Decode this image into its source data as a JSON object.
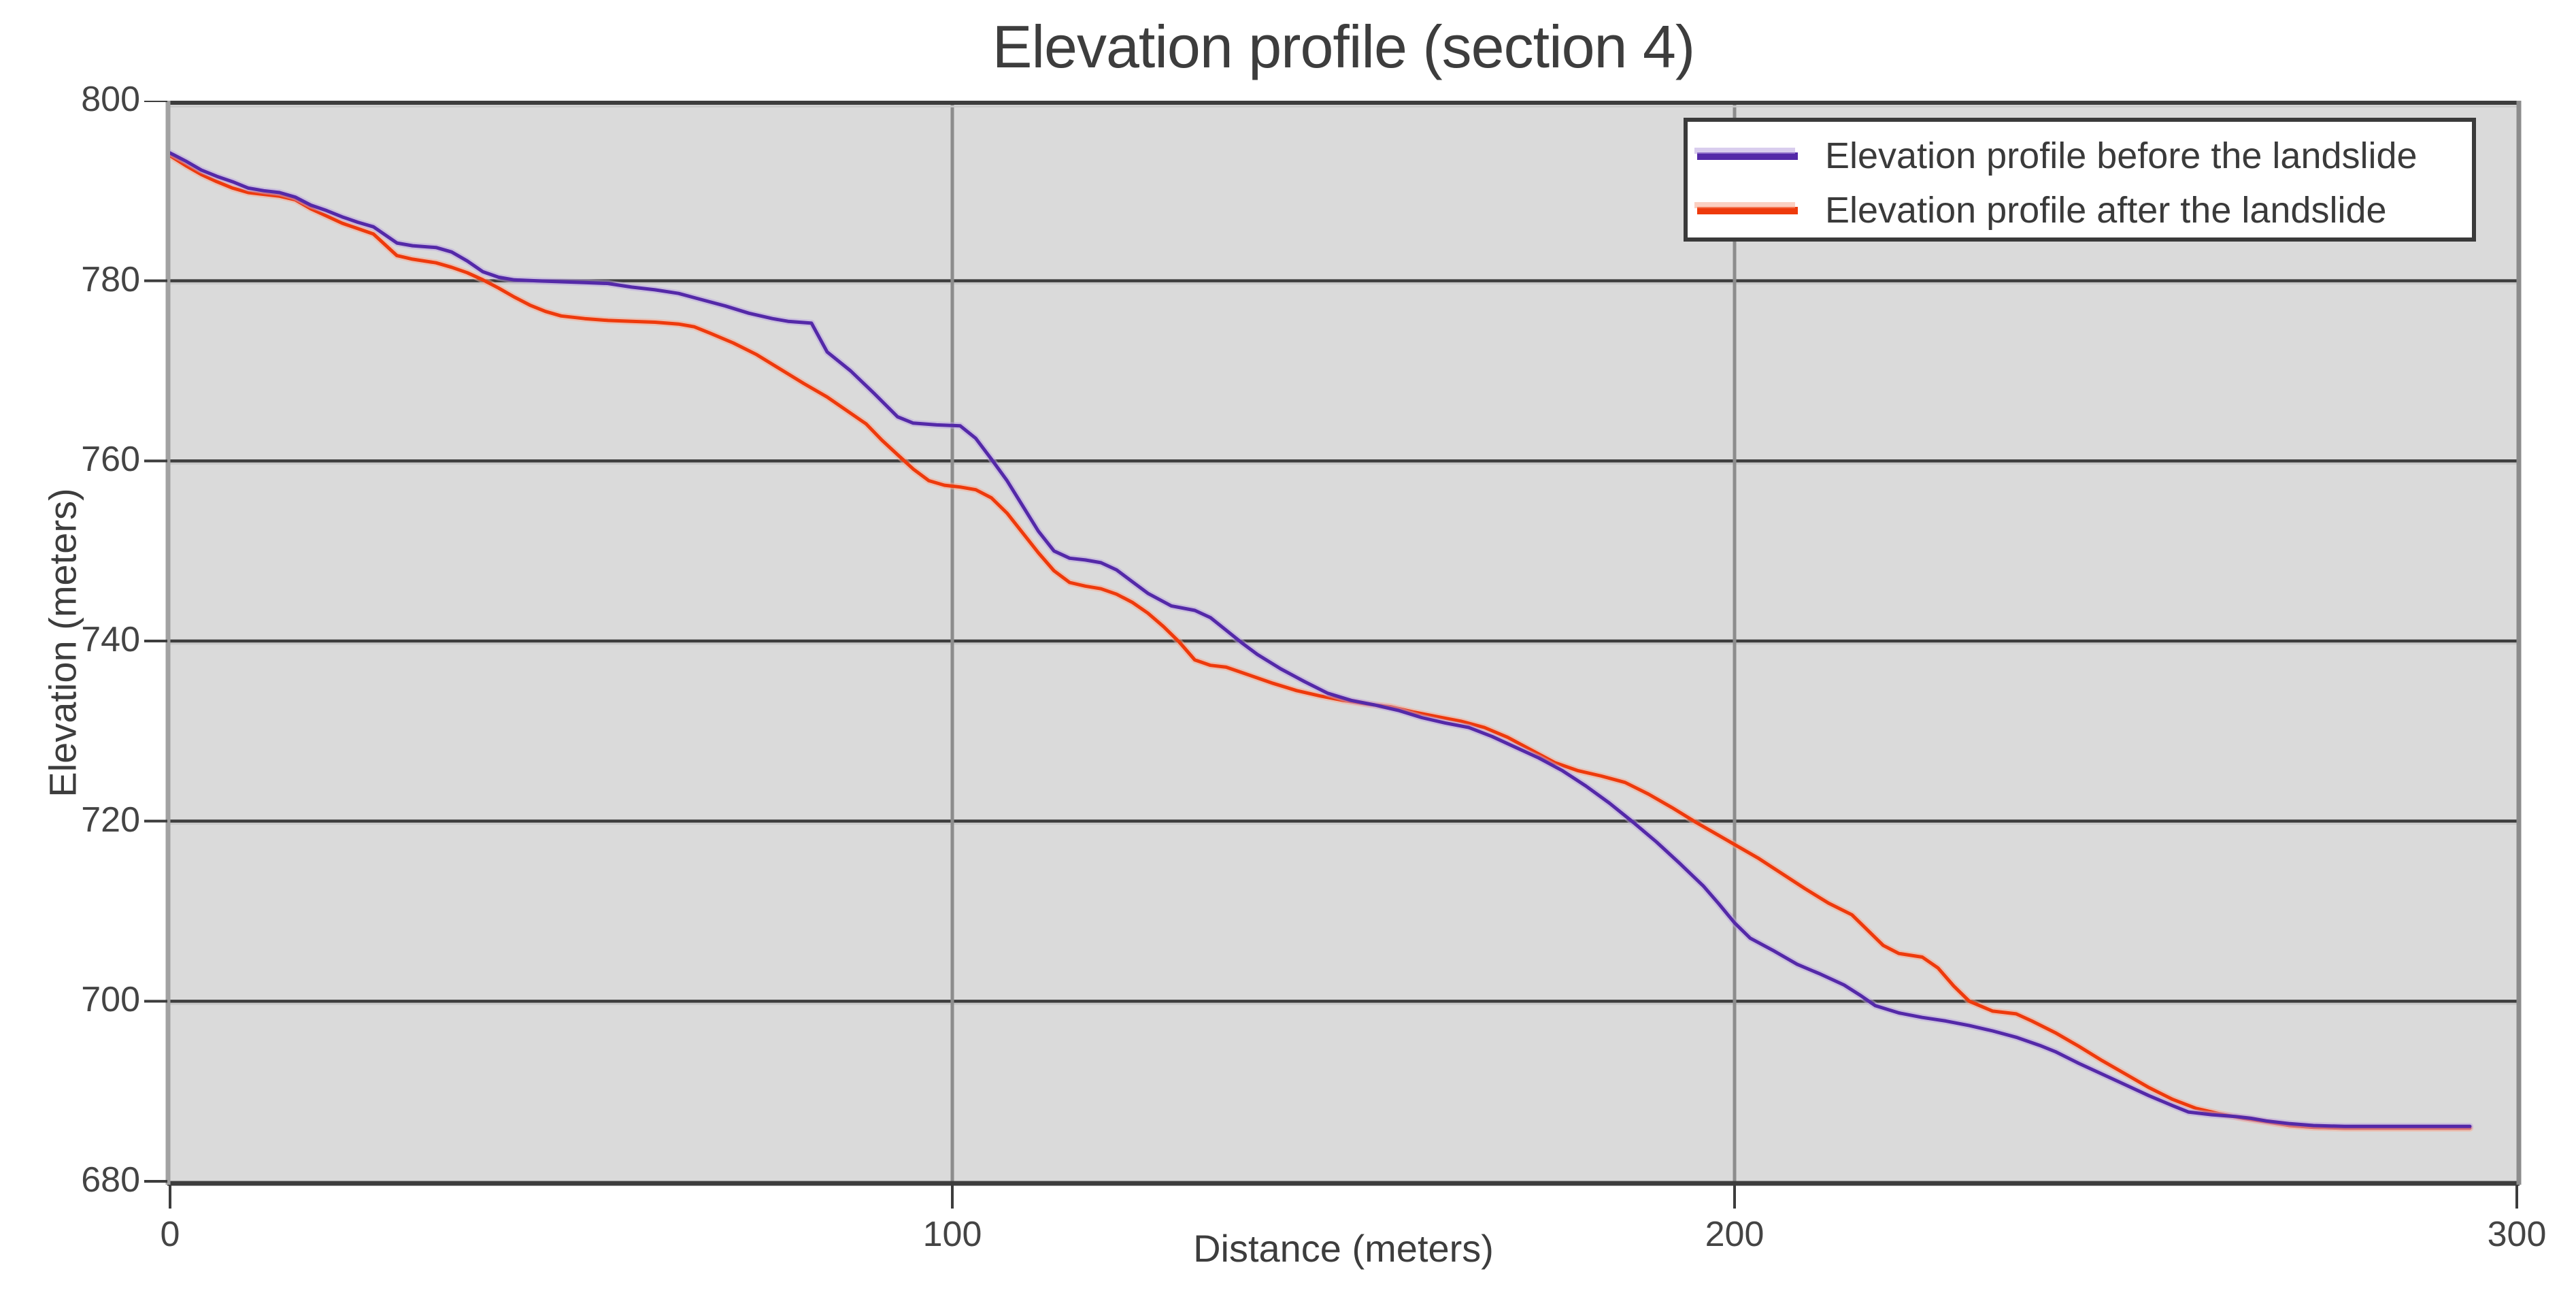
{
  "title": "Elevation profile (section 4)",
  "axes": {
    "x": {
      "label": "Distance (meters)",
      "ticks": [
        0,
        100,
        200,
        300
      ],
      "range": [
        0,
        300
      ]
    },
    "y": {
      "label": "Elevation (meters)",
      "ticks": [
        800,
        780,
        760,
        740,
        720,
        700,
        680
      ],
      "range": [
        680,
        800
      ]
    }
  },
  "legend": {
    "position": "top-right",
    "entries": [
      {
        "label": "Elevation profile before the landslide",
        "color": "#5429a8",
        "halo": "#b9a4e0"
      },
      {
        "label": "Elevation profile after the landslide",
        "color": "#ee3a0c",
        "halo": "#f8a88e"
      }
    ]
  },
  "colors": {
    "plot_background": "#dadada",
    "page_background": "#ffffff",
    "grid_major_horizontal": "#3d3d3d",
    "grid_shadow": "#c8c8c8",
    "grid_vertical": "#8c8c8c",
    "axis_left_band": "#a2a2a2",
    "axis_right_band": "#8c8c8c",
    "axis_dark": "#3d3d3d",
    "text": "#3d3d3d"
  },
  "chart_data": {
    "type": "line",
    "title": "Elevation profile (section 4)",
    "xlabel": "Distance (meters)",
    "ylabel": "Elevation (meters)",
    "xlim": [
      0,
      300
    ],
    "ylim": [
      680,
      800
    ],
    "grid": true,
    "legend_position": "top-right",
    "series": [
      {
        "name": "Elevation profile before the landslide",
        "color": "#5429a8",
        "points": [
          [
            0,
            794.2
          ],
          [
            2,
            793.3
          ],
          [
            4,
            792.3
          ],
          [
            6,
            791.6
          ],
          [
            8,
            791.0
          ],
          [
            10,
            790.3
          ],
          [
            12,
            790.0
          ],
          [
            14,
            789.8
          ],
          [
            16,
            789.3
          ],
          [
            18,
            788.4
          ],
          [
            20,
            787.8
          ],
          [
            22,
            787.1
          ],
          [
            24,
            786.5
          ],
          [
            26,
            786.0
          ],
          [
            29,
            784.2
          ],
          [
            31,
            783.9
          ],
          [
            34,
            783.7
          ],
          [
            36,
            783.2
          ],
          [
            38,
            782.2
          ],
          [
            40,
            781.0
          ],
          [
            42,
            780.4
          ],
          [
            44,
            780.1
          ],
          [
            47,
            780.0
          ],
          [
            50,
            779.9
          ],
          [
            53,
            779.8
          ],
          [
            56,
            779.7
          ],
          [
            59,
            779.3
          ],
          [
            62,
            779.0
          ],
          [
            65,
            778.6
          ],
          [
            68,
            777.9
          ],
          [
            71,
            777.2
          ],
          [
            74,
            776.4
          ],
          [
            77,
            775.8
          ],
          [
            79,
            775.5
          ],
          [
            82,
            775.3
          ],
          [
            84,
            772.1
          ],
          [
            87,
            770.0
          ],
          [
            90,
            767.5
          ],
          [
            93,
            764.9
          ],
          [
            95,
            764.2
          ],
          [
            98,
            764.0
          ],
          [
            101,
            763.9
          ],
          [
            103,
            762.5
          ],
          [
            105,
            760.2
          ],
          [
            107,
            757.8
          ],
          [
            109,
            755.0
          ],
          [
            111,
            752.2
          ],
          [
            113,
            750.0
          ],
          [
            115,
            749.2
          ],
          [
            117,
            749.0
          ],
          [
            119,
            748.7
          ],
          [
            121,
            747.9
          ],
          [
            123,
            746.6
          ],
          [
            125,
            745.3
          ],
          [
            128,
            743.9
          ],
          [
            131,
            743.4
          ],
          [
            133,
            742.6
          ],
          [
            135,
            741.2
          ],
          [
            137,
            739.8
          ],
          [
            139,
            738.5
          ],
          [
            142,
            736.9
          ],
          [
            145,
            735.5
          ],
          [
            148,
            734.2
          ],
          [
            151,
            733.4
          ],
          [
            154,
            732.9
          ],
          [
            157,
            732.3
          ],
          [
            160,
            731.5
          ],
          [
            163,
            730.9
          ],
          [
            166,
            730.4
          ],
          [
            169,
            729.4
          ],
          [
            172,
            728.2
          ],
          [
            175,
            727.0
          ],
          [
            178,
            725.6
          ],
          [
            181,
            723.9
          ],
          [
            184,
            722.0
          ],
          [
            187,
            719.9
          ],
          [
            190,
            717.7
          ],
          [
            193,
            715.3
          ],
          [
            196,
            712.8
          ],
          [
            198,
            710.8
          ],
          [
            200,
            708.7
          ],
          [
            202,
            707.0
          ],
          [
            205,
            705.6
          ],
          [
            208,
            704.1
          ],
          [
            211,
            703.0
          ],
          [
            214,
            701.8
          ],
          [
            216,
            700.7
          ],
          [
            218,
            699.5
          ],
          [
            221,
            698.7
          ],
          [
            224,
            698.2
          ],
          [
            227,
            697.8
          ],
          [
            230,
            697.3
          ],
          [
            233,
            696.7
          ],
          [
            236,
            696.0
          ],
          [
            239,
            695.1
          ],
          [
            241,
            694.4
          ],
          [
            244,
            693.1
          ],
          [
            247,
            691.9
          ],
          [
            250,
            690.7
          ],
          [
            253,
            689.5
          ],
          [
            256,
            688.4
          ],
          [
            258,
            687.7
          ],
          [
            261,
            687.4
          ],
          [
            264,
            687.2
          ],
          [
            266,
            687.0
          ],
          [
            268,
            686.7
          ],
          [
            271,
            686.4
          ],
          [
            274,
            686.2
          ],
          [
            278,
            686.1
          ],
          [
            283,
            686.1
          ],
          [
            288,
            686.1
          ],
          [
            294,
            686.1
          ]
        ]
      },
      {
        "name": "Elevation profile after the landslide",
        "color": "#ee3a0c",
        "points": [
          [
            0,
            793.9
          ],
          [
            2,
            792.8
          ],
          [
            4,
            791.8
          ],
          [
            6,
            791.0
          ],
          [
            8,
            790.3
          ],
          [
            10,
            789.8
          ],
          [
            12,
            789.6
          ],
          [
            14,
            789.4
          ],
          [
            16,
            789.0
          ],
          [
            18,
            788.0
          ],
          [
            20,
            787.2
          ],
          [
            22,
            786.4
          ],
          [
            24,
            785.8
          ],
          [
            26,
            785.2
          ],
          [
            29,
            782.8
          ],
          [
            31,
            782.4
          ],
          [
            34,
            782.0
          ],
          [
            36,
            781.5
          ],
          [
            38,
            780.9
          ],
          [
            40,
            780.1
          ],
          [
            42,
            779.2
          ],
          [
            44,
            778.2
          ],
          [
            46,
            777.3
          ],
          [
            48,
            776.6
          ],
          [
            50,
            776.1
          ],
          [
            53,
            775.8
          ],
          [
            56,
            775.6
          ],
          [
            59,
            775.5
          ],
          [
            62,
            775.4
          ],
          [
            65,
            775.2
          ],
          [
            67,
            774.9
          ],
          [
            69,
            774.2
          ],
          [
            72,
            773.1
          ],
          [
            75,
            771.8
          ],
          [
            78,
            770.2
          ],
          [
            81,
            768.6
          ],
          [
            84,
            767.1
          ],
          [
            86,
            765.9
          ],
          [
            89,
            764.1
          ],
          [
            91,
            762.3
          ],
          [
            93,
            760.7
          ],
          [
            95,
            759.1
          ],
          [
            97,
            757.8
          ],
          [
            99,
            757.3
          ],
          [
            101,
            757.1
          ],
          [
            103,
            756.8
          ],
          [
            105,
            755.9
          ],
          [
            107,
            754.2
          ],
          [
            109,
            752.0
          ],
          [
            111,
            749.8
          ],
          [
            113,
            747.8
          ],
          [
            115,
            746.5
          ],
          [
            117,
            746.1
          ],
          [
            119,
            745.8
          ],
          [
            121,
            745.2
          ],
          [
            123,
            744.3
          ],
          [
            125,
            743.1
          ],
          [
            127,
            741.6
          ],
          [
            129,
            739.9
          ],
          [
            131,
            737.9
          ],
          [
            133,
            737.3
          ],
          [
            135,
            737.1
          ],
          [
            138,
            736.2
          ],
          [
            141,
            735.3
          ],
          [
            144,
            734.5
          ],
          [
            147,
            733.9
          ],
          [
            150,
            733.4
          ],
          [
            153,
            733.0
          ],
          [
            156,
            732.7
          ],
          [
            159,
            732.1
          ],
          [
            162,
            731.6
          ],
          [
            165,
            731.1
          ],
          [
            168,
            730.4
          ],
          [
            171,
            729.3
          ],
          [
            174,
            727.9
          ],
          [
            177,
            726.5
          ],
          [
            180,
            725.6
          ],
          [
            183,
            725.0
          ],
          [
            186,
            724.3
          ],
          [
            189,
            723.0
          ],
          [
            192,
            721.5
          ],
          [
            195,
            719.9
          ],
          [
            198,
            718.4
          ],
          [
            200,
            717.4
          ],
          [
            203,
            715.9
          ],
          [
            206,
            714.2
          ],
          [
            209,
            712.5
          ],
          [
            212,
            710.9
          ],
          [
            215,
            709.6
          ],
          [
            217,
            707.9
          ],
          [
            219,
            706.2
          ],
          [
            221,
            705.3
          ],
          [
            224,
            704.9
          ],
          [
            226,
            703.7
          ],
          [
            228,
            701.7
          ],
          [
            230,
            700.0
          ],
          [
            233,
            698.9
          ],
          [
            236,
            698.6
          ],
          [
            238,
            697.8
          ],
          [
            241,
            696.5
          ],
          [
            244,
            695.0
          ],
          [
            247,
            693.4
          ],
          [
            250,
            691.9
          ],
          [
            253,
            690.4
          ],
          [
            256,
            689.1
          ],
          [
            259,
            688.1
          ],
          [
            262,
            687.5
          ],
          [
            265,
            687.0
          ],
          [
            268,
            686.6
          ],
          [
            271,
            686.2
          ],
          [
            274,
            686.0
          ],
          [
            278,
            685.9
          ],
          [
            283,
            685.9
          ],
          [
            288,
            685.9
          ],
          [
            294,
            685.9
          ]
        ]
      }
    ]
  }
}
